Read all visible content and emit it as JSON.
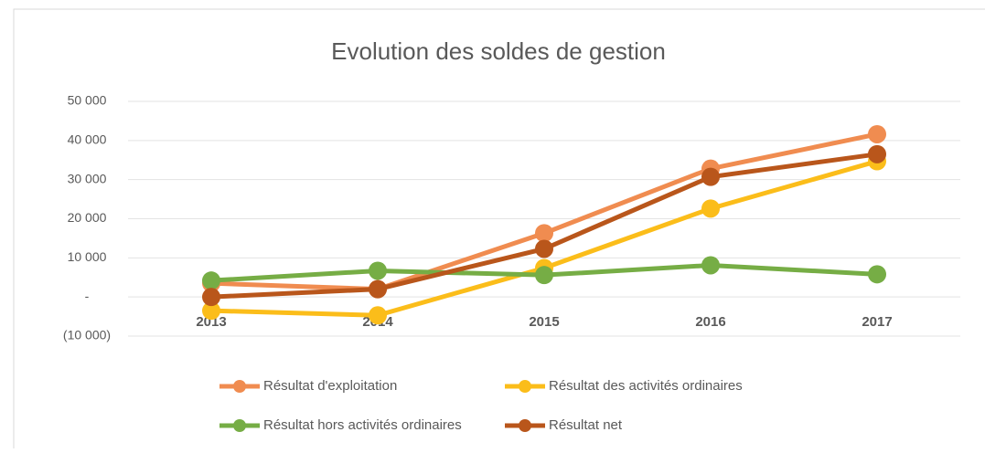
{
  "chart_data": {
    "type": "line",
    "title": "Evolution des soldes de gestion",
    "categories": [
      "2013",
      "2014",
      "2015",
      "2016",
      "2017"
    ],
    "series": [
      {
        "name": "Résultat d'exploitation",
        "color": "#f08c50",
        "values": [
          3500,
          2000,
          16300,
          32800,
          41600
        ]
      },
      {
        "name": "Résultat des activités ordinaires",
        "color": "#fbbd1a",
        "values": [
          -3500,
          -4700,
          7400,
          22600,
          34700
        ]
      },
      {
        "name": "Résultat hors activités ordinaires",
        "color": "#76ad45",
        "values": [
          4200,
          6700,
          5600,
          8100,
          5800
        ]
      },
      {
        "name": "Résultat net",
        "color": "#b9561b",
        "values": [
          0,
          2000,
          12300,
          30700,
          36500
        ]
      }
    ],
    "ylim": [
      -10000,
      50000
    ],
    "yticks": [
      {
        "value": -10000,
        "label": "(10 000)"
      },
      {
        "value": 0,
        "label": "-"
      },
      {
        "value": 10000,
        "label": "10 000"
      },
      {
        "value": 20000,
        "label": "20 000"
      },
      {
        "value": 30000,
        "label": "30 000"
      },
      {
        "value": 40000,
        "label": "40 000"
      },
      {
        "value": 50000,
        "label": "50 000"
      }
    ],
    "grid": true,
    "legend": "bottom"
  }
}
